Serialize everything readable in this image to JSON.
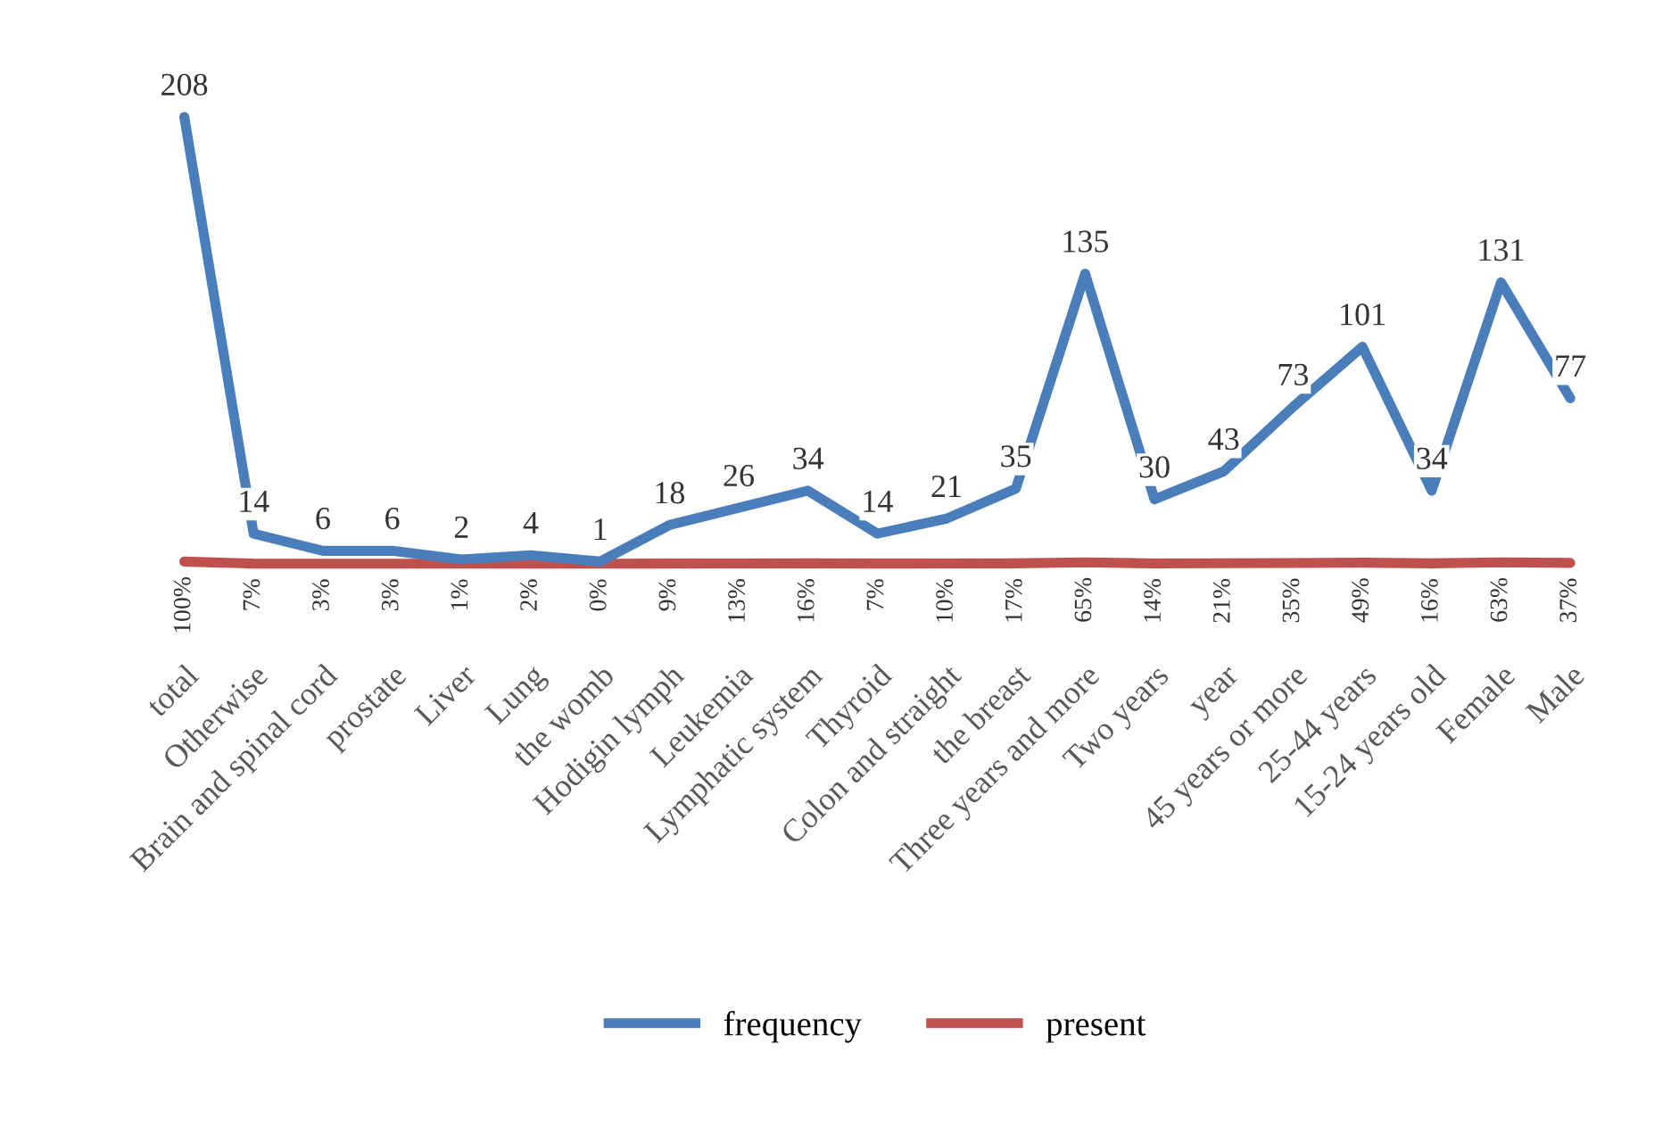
{
  "chart_data": {
    "type": "line",
    "categories": [
      "total",
      "Otherwise",
      "Brain and spinal cord",
      "prostate",
      "Liver",
      "Lung",
      "the womb",
      "Hodigin lymph",
      "Leukemia",
      "Lymphatic system",
      "Thyroid",
      "Colon and straight",
      "the breast",
      "Three years and more",
      "Two years",
      "year",
      "45 years or more",
      "25-44 years",
      "15-24 years old",
      "Female",
      "Male"
    ],
    "series": [
      {
        "name": "frequency",
        "color": "#4a7ebb",
        "values": [
          208,
          14,
          6,
          6,
          2,
          4,
          1,
          18,
          26,
          34,
          14,
          21,
          35,
          135,
          30,
          43,
          73,
          101,
          34,
          131,
          77
        ],
        "value_labels": [
          "208",
          "14",
          "6",
          "6",
          "2",
          "4",
          "1",
          "18",
          "26",
          "34",
          "14",
          "21",
          "35",
          "135",
          "30",
          "43",
          "73",
          "101",
          "34",
          "131",
          "77"
        ]
      },
      {
        "name": "present",
        "color": "#c0504d",
        "values": [
          1,
          0.07,
          0.03,
          0.03,
          0.01,
          0.02,
          0,
          0.09,
          0.13,
          0.16,
          0.07,
          0.1,
          0.17,
          0.65,
          0.14,
          0.21,
          0.35,
          0.49,
          0.16,
          0.63,
          0.37
        ],
        "value_labels": [
          "100%",
          "7%",
          "3%",
          "3%",
          "1%",
          "2%",
          "0%",
          "9%",
          "13%",
          "16%",
          "7%",
          "10%",
          "17%",
          "65%",
          "14%",
          "21%",
          "35%",
          "49%",
          "16%",
          "63%",
          "37%"
        ]
      }
    ],
    "grid": false,
    "legend": "bottom",
    "marker": "none",
    "line_style": "solid"
  }
}
